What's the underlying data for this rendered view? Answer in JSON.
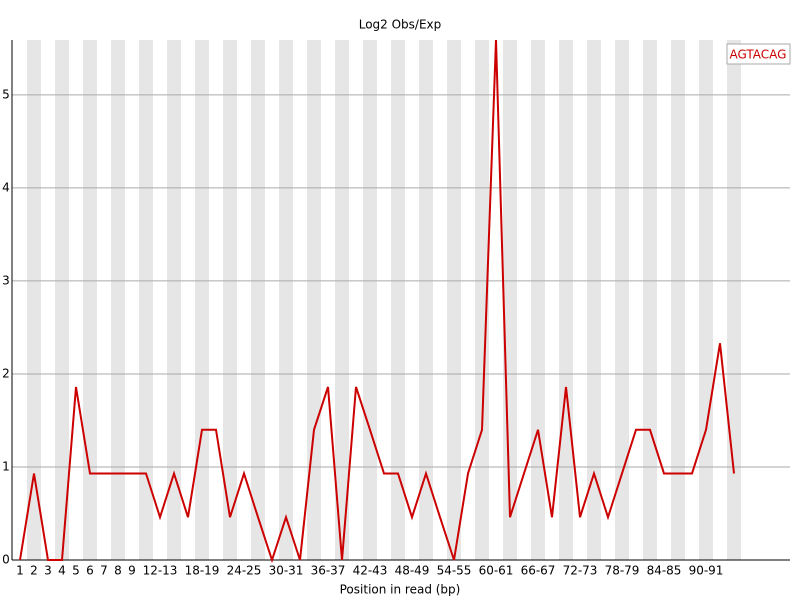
{
  "chart_data": {
    "type": "line",
    "title": "Log2 Obs/Exp",
    "xlabel": "Position in read (bp)",
    "categories": [
      "1",
      "2",
      "3",
      "4",
      "5",
      "6",
      "7",
      "8",
      "9",
      null,
      "12-13",
      null,
      null,
      "18-19",
      null,
      null,
      "24-25",
      null,
      null,
      "30-31",
      null,
      null,
      "36-37",
      null,
      null,
      "42-43",
      null,
      null,
      "48-49",
      null,
      null,
      "54-55",
      null,
      null,
      "60-61",
      null,
      null,
      "66-67",
      null,
      null,
      "72-73",
      null,
      null,
      "78-79",
      null,
      null,
      "84-85",
      null,
      null,
      "90-91",
      null,
      null
    ],
    "series": [
      {
        "name": "AGTACAG",
        "color": "#cc0000",
        "values": [
          0,
          0.93,
          0,
          0,
          1.86,
          0.93,
          0.93,
          0.93,
          0.93,
          0.93,
          0.46,
          0.93,
          0.46,
          1.4,
          1.4,
          0.46,
          0.93,
          0.46,
          0,
          0.46,
          0,
          1.4,
          1.86,
          0,
          1.86,
          1.4,
          0.93,
          0.93,
          0.46,
          0.93,
          0.46,
          0,
          0.93,
          1.4,
          5.59,
          0.46,
          0.93,
          1.4,
          0.46,
          1.86,
          0.46,
          0.93,
          0.46,
          0.93,
          1.4,
          1.4,
          0.93,
          0.93,
          0.93,
          1.4,
          2.33,
          0.93
        ]
      }
    ],
    "ylim": [
      0,
      5.59
    ],
    "yticks": [
      0,
      1,
      2,
      3,
      4,
      5
    ],
    "grid": true,
    "legend": "top-right"
  }
}
